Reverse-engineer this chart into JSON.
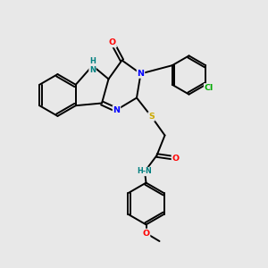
{
  "background_color": "#e8e8e8",
  "atom_colors": {
    "C": "#000000",
    "N": "#0000ff",
    "O": "#ff0000",
    "S": "#ccaa00",
    "H": "#008080",
    "Cl": "#00aa00"
  },
  "bond_color": "#000000",
  "figsize": [
    3.0,
    3.0
  ],
  "dpi": 100
}
